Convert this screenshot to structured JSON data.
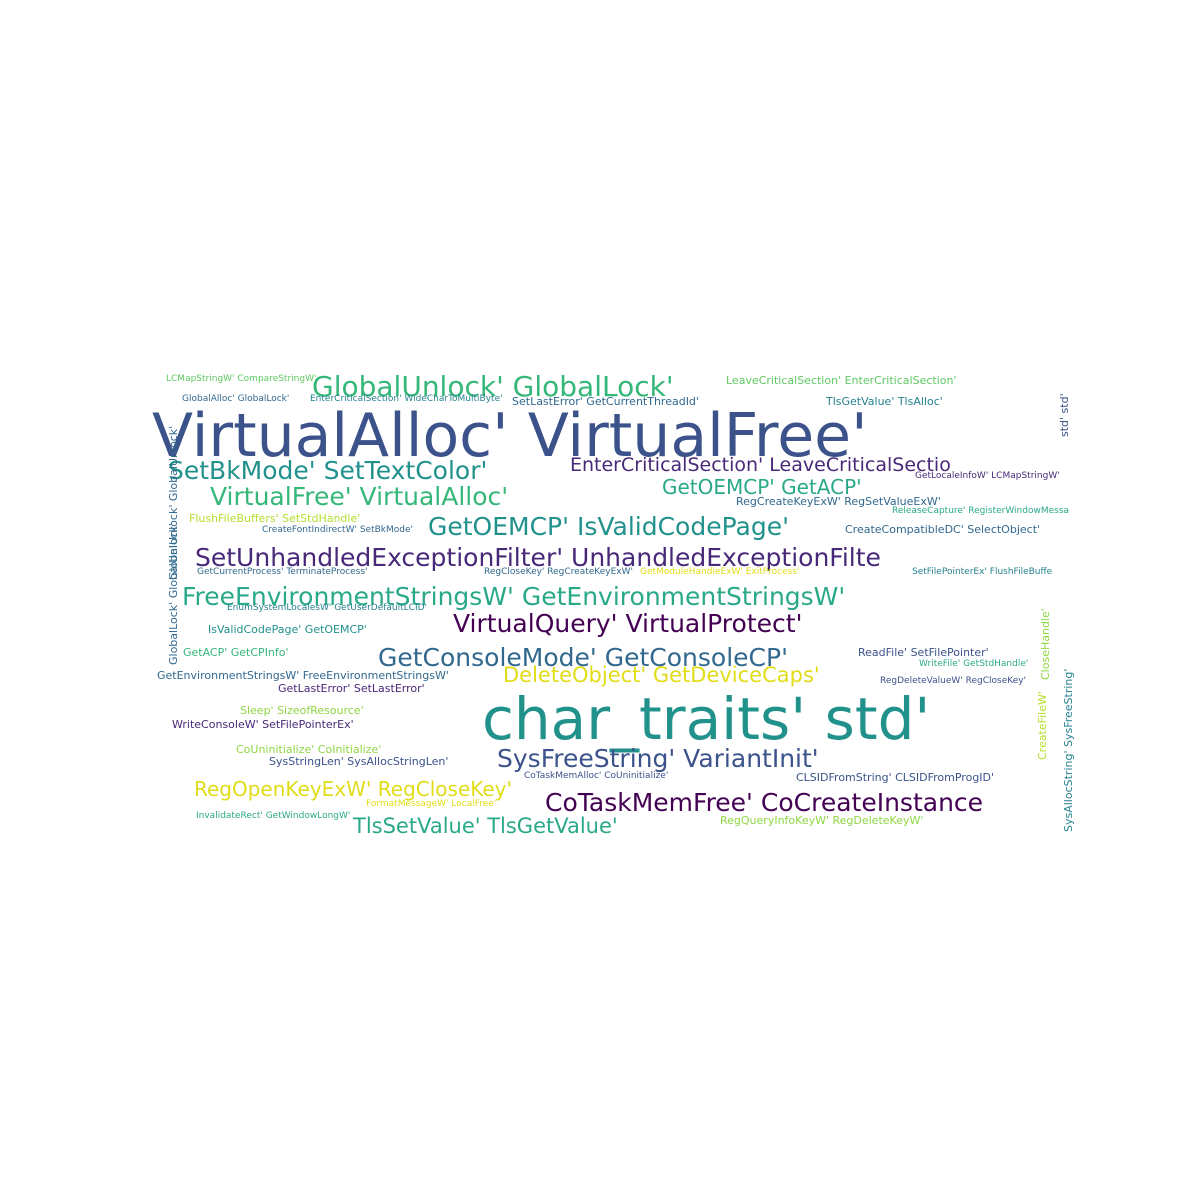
{
  "colors": {
    "c1": "#3b528b",
    "c2": "#21918c",
    "c3": "#2aa989",
    "c4": "#440154",
    "c5": "#482878",
    "c6": "#31688e",
    "c7": "#26828e",
    "c8": "#e0dd18",
    "c9": "#5ec962",
    "c10": "#8fd744",
    "c11": "#35b779",
    "c12": "#b5de2b"
  },
  "words": [
    {
      "text": "VirtualAlloc' VirtualFree'",
      "color": "#3b528b"
    },
    {
      "text": "char_traits' std'",
      "color": "#21918c"
    },
    {
      "text": "GlobalUnlock' GlobalLock'",
      "color": "#35b779"
    },
    {
      "text": "SetBkMode' SetTextColor'",
      "color": "#21918c"
    },
    {
      "text": "EnterCriticalSection' LeaveCriticalSectio",
      "color": "#482878"
    },
    {
      "text": "VirtualFree' VirtualAlloc'",
      "color": "#35b779"
    },
    {
      "text": "GetOEMCP' GetACP'",
      "color": "#2aa989"
    },
    {
      "text": "GetOEMCP' IsValidCodePage'",
      "color": "#21918c"
    },
    {
      "text": "SetUnhandledExceptionFilter' UnhandledExceptionFilte",
      "color": "#482878"
    },
    {
      "text": "FreeEnvironmentStringsW' GetEnvironmentStringsW'",
      "color": "#2aa989"
    },
    {
      "text": "VirtualQuery' VirtualProtect'",
      "color": "#440154"
    },
    {
      "text": "GetConsoleMode' GetConsoleCP'",
      "color": "#31688e"
    },
    {
      "text": "DeleteObject' GetDeviceCaps'",
      "color": "#e0dd18"
    },
    {
      "text": "SysFreeString' VariantInit'",
      "color": "#3b528b"
    },
    {
      "text": "RegOpenKeyExW' RegCloseKey'",
      "color": "#e0dd18"
    },
    {
      "text": "CoTaskMemFree' CoCreateInstance",
      "color": "#440154"
    },
    {
      "text": "TlsSetValue' TlsGetValue'",
      "color": "#2aa989"
    },
    {
      "text": "LCMapStringW' CompareStringW'",
      "color": "#5ec962"
    },
    {
      "text": "LeaveCriticalSection' EnterCriticalSection'",
      "color": "#5ec962"
    },
    {
      "text": "GlobalAlloc' GlobalLock'",
      "color": "#31688e"
    },
    {
      "text": "EnterCriticalSection' WideCharToMultiByte'",
      "color": "#26828e"
    },
    {
      "text": "SetLastError' GetCurrentThreadId'",
      "color": "#31688e"
    },
    {
      "text": "TlsGetValue' TlsAlloc'",
      "color": "#26828e"
    },
    {
      "text": "std' std'",
      "color": "#3b528b"
    },
    {
      "text": "RegCreateKeyExW' RegSetValueExW'",
      "color": "#31688e"
    },
    {
      "text": "ReleaseCapture' RegisterWindowMessa",
      "color": "#2aa989"
    },
    {
      "text": "FlushFileBuffers' SetStdHandle'",
      "color": "#b5de2b"
    },
    {
      "text": "CreateFontIndirectW' SetBkMode'",
      "color": "#31688e"
    },
    {
      "text": "CreateCompatibleDC' SelectObject'",
      "color": "#31688e"
    },
    {
      "text": "GlobalUnlock' GlobalUnlock'",
      "color": "#31688e"
    },
    {
      "text": "GetCurrentProcess' TerminateProcess'",
      "color": "#31688e"
    },
    {
      "text": "RegCloseKey' RegCreateKeyExW'",
      "color": "#31688e"
    },
    {
      "text": "GetModuleHandleExW' ExitProcess'",
      "color": "#e0dd18"
    },
    {
      "text": "SetFilePointerEx' FlushFileBuffe",
      "color": "#26828e"
    },
    {
      "text": "EnumSystemLocalesW' GetUserDefaultLCID'",
      "color": "#26828e"
    },
    {
      "text": "GlobalLock' GlobalUnlock'",
      "color": "#31688e"
    },
    {
      "text": "IsValidCodePage' GetOEMCP'",
      "color": "#21918c"
    },
    {
      "text": "CloseHandle'",
      "color": "#8fd744"
    },
    {
      "text": "GetACP' GetCPInfo'",
      "color": "#35b779"
    },
    {
      "text": "ReadFile' SetFilePointer'",
      "color": "#3b528b"
    },
    {
      "text": "WriteFile' GetStdHandle'",
      "color": "#2aa989"
    },
    {
      "text": "SysAllocString' SysFreeString'",
      "color": "#26828e"
    },
    {
      "text": "GetEnvironmentStringsW' FreeEnvironmentStringsW'",
      "color": "#31688e"
    },
    {
      "text": "GetLastError' SetLastError'",
      "color": "#482878"
    },
    {
      "text": "RegDeleteValueW' RegCloseKey'",
      "color": "#3b528b"
    },
    {
      "text": "CreateFileW'",
      "color": "#b5de2b"
    },
    {
      "text": "Sleep' SizeofResource'",
      "color": "#8fd744"
    },
    {
      "text": "WriteConsoleW' SetFilePointerEx'",
      "color": "#482878"
    },
    {
      "text": "CoUninitialize' CoInitialize'",
      "color": "#8fd744"
    },
    {
      "text": "SysStringLen' SysAllocStringLen'",
      "color": "#3b528b"
    },
    {
      "text": "CoTaskMemAlloc' CoUninitialize'",
      "color": "#3b528b"
    },
    {
      "text": "CLSIDFromString' CLSIDFromProgID'",
      "color": "#3b528b"
    },
    {
      "text": "FormatMessageW' LocalFree'",
      "color": "#e0dd18"
    },
    {
      "text": "InvalidateRect' GetWindowLongW'",
      "color": "#2aa989"
    },
    {
      "text": "RegQueryInfoKeyW' RegDeleteKeyW'",
      "color": "#8fd744"
    },
    {
      "text": "GetLocaleInfoW' LCMapStringW'",
      "color": "#482878"
    }
  ]
}
